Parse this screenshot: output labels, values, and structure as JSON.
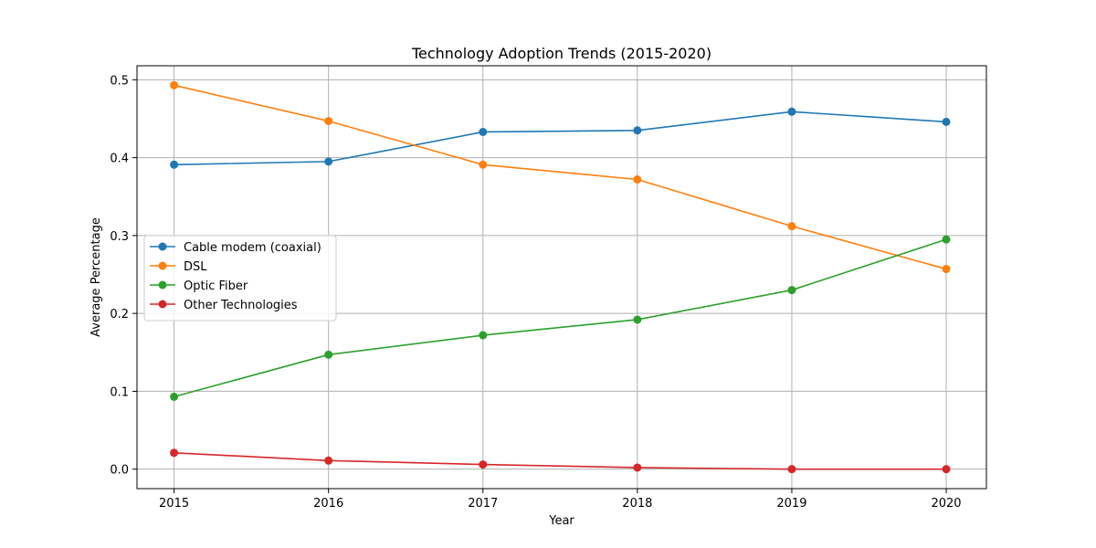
{
  "chart_data": {
    "type": "line",
    "title": "Technology Adoption Trends (2015-2020)",
    "xlabel": "Year",
    "ylabel": "Average Percentage",
    "x": [
      2015,
      2016,
      2017,
      2018,
      2019,
      2020
    ],
    "xlim": [
      2014.76,
      2020.26
    ],
    "ylim": [
      -0.025,
      0.518
    ],
    "yticks": [
      0.0,
      0.1,
      0.2,
      0.3,
      0.4,
      0.5
    ],
    "ytick_labels": [
      "0.0",
      "0.1",
      "0.2",
      "0.3",
      "0.4",
      "0.5"
    ],
    "xtick_labels": [
      "2015",
      "2016",
      "2017",
      "2018",
      "2019",
      "2020"
    ],
    "grid": true,
    "legend_position": "center-left",
    "series": [
      {
        "name": "Cable modem (coaxial)",
        "color": "#1f77b4",
        "values": [
          0.391,
          0.395,
          0.433,
          0.435,
          0.459,
          0.446
        ]
      },
      {
        "name": "DSL",
        "color": "#ff7f0e",
        "values": [
          0.493,
          0.447,
          0.391,
          0.372,
          0.312,
          0.257
        ]
      },
      {
        "name": "Optic Fiber",
        "color": "#2ca02c",
        "values": [
          0.093,
          0.147,
          0.172,
          0.192,
          0.23,
          0.295
        ]
      },
      {
        "name": "Other Technologies",
        "color": "#d62728",
        "values": [
          0.021,
          0.011,
          0.006,
          0.002,
          0.0,
          0.0
        ]
      }
    ]
  }
}
